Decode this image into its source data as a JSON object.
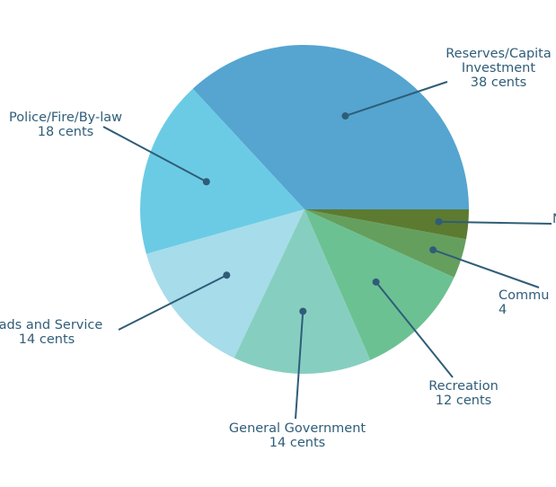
{
  "chart_data": {
    "type": "pie",
    "unit": "cents",
    "slices": [
      {
        "name": "Reserves/Capital Investment",
        "label_lines": [
          "Reserves/Capita",
          "Investment",
          "38 cents"
        ],
        "value": 38,
        "color": "#55a5d0"
      },
      {
        "name": "Police/Fire/By-law",
        "label_lines": [
          "Police/Fire/By-law",
          "18 cents"
        ],
        "value": 18,
        "color": "#6bcbe5"
      },
      {
        "name": "Roads and Service",
        "label_lines": [
          "oads and Service",
          "14 cents"
        ],
        "value": 14,
        "color": "#a7dcea"
      },
      {
        "name": "General Government",
        "label_lines": [
          "General Government",
          "14 cents"
        ],
        "value": 14,
        "color": "#86cfc0"
      },
      {
        "name": "Recreation",
        "label_lines": [
          "Recreation",
          "12 cents"
        ],
        "value": 12,
        "color": "#6cc193"
      },
      {
        "name": "Community",
        "label_lines": [
          "Commu",
          "4"
        ],
        "value": 4,
        "color": "#659f5e"
      },
      {
        "name": "",
        "label_lines": [
          "N"
        ],
        "value": 3,
        "color": "#5c7b31"
      }
    ]
  }
}
